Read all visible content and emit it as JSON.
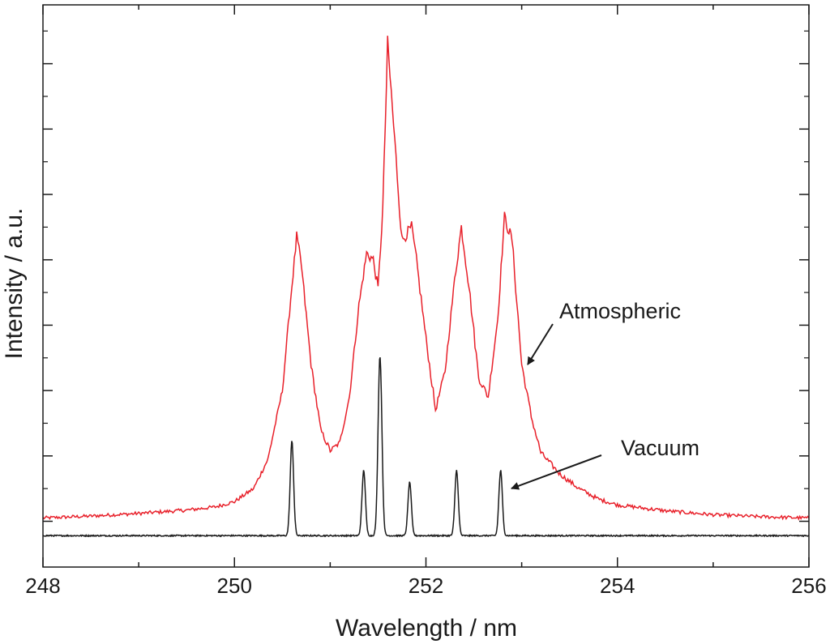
{
  "chart_data": {
    "type": "line",
    "xlabel": "Wavelength / nm",
    "ylabel": "Intensity / a.u.",
    "xlim": [
      248,
      256
    ],
    "ylim": [
      -0.7,
      7.9
    ],
    "x_ticks": [
      248,
      250,
      252,
      254,
      256
    ],
    "x_minor_step": 1,
    "y_tick_step": 1,
    "y_tick_labels_shown": false,
    "grid": false,
    "mirrored_ticks": true,
    "series": [
      {
        "name": "Atmospheric",
        "color": "#e8202a",
        "baseline": 0.05,
        "points": [
          [
            248,
            0.05
          ],
          [
            248.5,
            0.08
          ],
          [
            249,
            0.12
          ],
          [
            249.5,
            0.17
          ],
          [
            249.8,
            0.22
          ],
          [
            250,
            0.3
          ],
          [
            250.2,
            0.5
          ],
          [
            250.35,
            0.95
          ],
          [
            250.5,
            2.0
          ],
          [
            250.6,
            3.6
          ],
          [
            250.65,
            4.35
          ],
          [
            250.7,
            3.9
          ],
          [
            250.8,
            2.4
          ],
          [
            250.9,
            1.4
          ],
          [
            251.0,
            1.08
          ],
          [
            251.1,
            1.2
          ],
          [
            251.2,
            1.9
          ],
          [
            251.3,
            3.3
          ],
          [
            251.38,
            4.1
          ],
          [
            251.45,
            4.0
          ],
          [
            251.5,
            3.55
          ],
          [
            251.55,
            4.8
          ],
          [
            251.6,
            7.3
          ],
          [
            251.65,
            6.3
          ],
          [
            251.75,
            4.3
          ],
          [
            251.85,
            4.5
          ],
          [
            251.9,
            4.0
          ],
          [
            252.0,
            2.8
          ],
          [
            252.1,
            1.7
          ],
          [
            252.2,
            2.3
          ],
          [
            252.3,
            3.7
          ],
          [
            252.37,
            4.5
          ],
          [
            252.45,
            3.6
          ],
          [
            252.55,
            2.2
          ],
          [
            252.65,
            1.9
          ],
          [
            252.75,
            3.1
          ],
          [
            252.82,
            4.65
          ],
          [
            252.9,
            4.3
          ],
          [
            253.0,
            2.4
          ],
          [
            253.1,
            1.6
          ],
          [
            253.2,
            1.05
          ],
          [
            253.4,
            0.72
          ],
          [
            253.6,
            0.5
          ],
          [
            253.8,
            0.34
          ],
          [
            254.0,
            0.25
          ],
          [
            254.5,
            0.16
          ],
          [
            255.0,
            0.1
          ],
          [
            255.5,
            0.07
          ],
          [
            256,
            0.05
          ]
        ]
      },
      {
        "name": "Vacuum",
        "color": "#1a1a1a",
        "baseline": -0.22,
        "peaks": [
          [
            250.6,
            1.45,
            0.018
          ],
          [
            251.35,
            1.0,
            0.018
          ],
          [
            251.52,
            2.75,
            0.02
          ],
          [
            251.83,
            0.82,
            0.018
          ],
          [
            252.32,
            1.0,
            0.018
          ],
          [
            252.78,
            1.0,
            0.018
          ]
        ]
      }
    ],
    "annotations": [
      {
        "text": "Atmospheric",
        "target_series": "Atmospheric"
      },
      {
        "text": "Vacuum",
        "target_series": "Vacuum"
      }
    ]
  }
}
